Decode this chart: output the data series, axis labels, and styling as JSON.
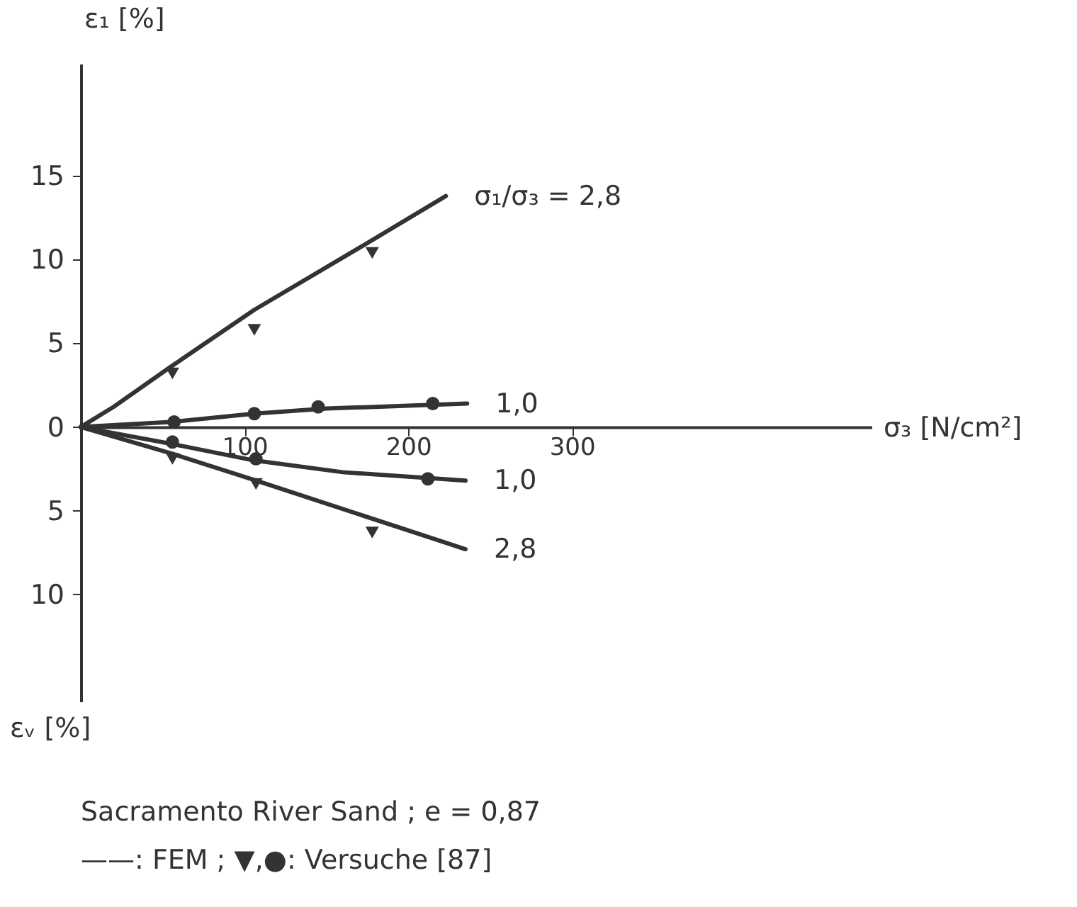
{
  "chart_data": {
    "type": "line",
    "xlabel": "σ₃ [N/cm²]",
    "ylabel": "ε₁ [%]",
    "xlim": [
      0,
      483
    ],
    "ylim": [
      -16.4,
      21.7
    ],
    "xticks": [
      100,
      200,
      300
    ],
    "yticks": [
      {
        "value": -10,
        "label": "10"
      },
      {
        "value": -5,
        "label": "5"
      },
      0,
      5,
      10,
      15
    ],
    "grid": false,
    "line_style": "solid",
    "annotations": [
      "εᵥ [%]",
      "Sacramento River Sand ; e = 0,87",
      "——: FEM ; ▼,●: Versuche [87]"
    ],
    "series": [
      {
        "name": "σ₁/σ₃ = 2,8",
        "color": "#333333",
        "x": [
          0,
          20,
          55,
          106,
          170,
          223
        ],
        "values": [
          0,
          1.2,
          3.6,
          7.0,
          10.7,
          13.8
        ]
      },
      {
        "name": "1,0",
        "color": "#333333",
        "x": [
          0,
          55,
          106,
          150,
          236
        ],
        "values": [
          0,
          0.3,
          0.8,
          1.1,
          1.4
        ]
      },
      {
        "name": "1,0",
        "color": "#333333",
        "x": [
          0,
          55,
          106,
          160,
          235
        ],
        "values": [
          0,
          -1.0,
          -2.0,
          -2.7,
          -3.2
        ]
      },
      {
        "name": "2,8",
        "color": "#333333",
        "x": [
          0,
          56,
          107,
          235
        ],
        "values": [
          0,
          -1.6,
          -3.2,
          -7.3
        ]
      },
      {
        "type": "scatter",
        "marker": "triangle",
        "color": "#333333",
        "x": [
          56,
          106,
          178
        ],
        "values": [
          3.2,
          5.8,
          10.4
        ]
      },
      {
        "type": "scatter",
        "marker": "circle",
        "color": "#333333",
        "x": [
          57,
          106,
          145,
          215
        ],
        "values": [
          0.3,
          0.8,
          1.2,
          1.4
        ]
      },
      {
        "type": "scatter",
        "marker": "circle",
        "color": "#333333",
        "x": [
          56,
          107,
          212
        ],
        "values": [
          -0.9,
          -1.9,
          -3.1
        ]
      },
      {
        "type": "scatter",
        "marker": "triangle",
        "color": "#333333",
        "x": [
          56,
          107,
          178
        ],
        "values": [
          -1.9,
          -3.4,
          -6.3
        ]
      }
    ]
  }
}
